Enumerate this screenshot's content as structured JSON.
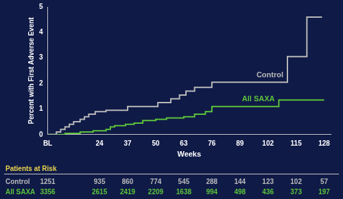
{
  "chart_data": {
    "type": "line",
    "line_style": "step",
    "x_label": "Weeks",
    "y_label": "Percent with First Adverse Event",
    "xlim": [
      0,
      131
    ],
    "xticks": [
      {
        "value": 0,
        "label": "BL"
      },
      24,
      37,
      50,
      63,
      76,
      89,
      102,
      115,
      128
    ],
    "ylim": [
      0,
      5
    ],
    "yticks": [
      0,
      1,
      2,
      3,
      4,
      5
    ],
    "grid": false,
    "series": [
      {
        "name": "Control",
        "color": "#b9b9b9",
        "x": [
          0,
          4,
          6,
          8,
          10,
          12,
          15,
          17,
          19,
          22,
          27,
          37,
          51,
          57,
          61,
          64,
          68,
          76,
          111,
          120,
          127
        ],
        "values": [
          0,
          0.1,
          0.2,
          0.3,
          0.4,
          0.5,
          0.6,
          0.7,
          0.8,
          0.9,
          0.95,
          1.1,
          1.25,
          1.4,
          1.55,
          1.7,
          1.85,
          2.05,
          3.05,
          4.6,
          4.6
        ],
        "at_risk": [
          1251,
          935,
          860,
          774,
          545,
          288,
          144,
          123,
          102,
          57
        ]
      },
      {
        "name": "All SAXA",
        "color": "#5cc23a",
        "x": [
          0,
          8,
          15,
          21,
          27,
          29,
          31,
          36,
          40,
          44,
          50,
          55,
          63,
          68,
          73,
          76,
          107,
          128
        ],
        "values": [
          0,
          0.05,
          0.1,
          0.15,
          0.2,
          0.3,
          0.35,
          0.4,
          0.45,
          0.55,
          0.6,
          0.65,
          0.7,
          0.8,
          0.9,
          1.1,
          1.35,
          1.35
        ],
        "at_risk": [
          3356,
          2615,
          2419,
          2209,
          1638,
          994,
          498,
          436,
          373,
          197
        ]
      }
    ],
    "risk_table": {
      "title": "Patients at Risk",
      "title_color": "#e8d44d",
      "x": [
        0,
        24,
        37,
        50,
        63,
        76,
        89,
        102,
        115,
        128
      ]
    }
  }
}
